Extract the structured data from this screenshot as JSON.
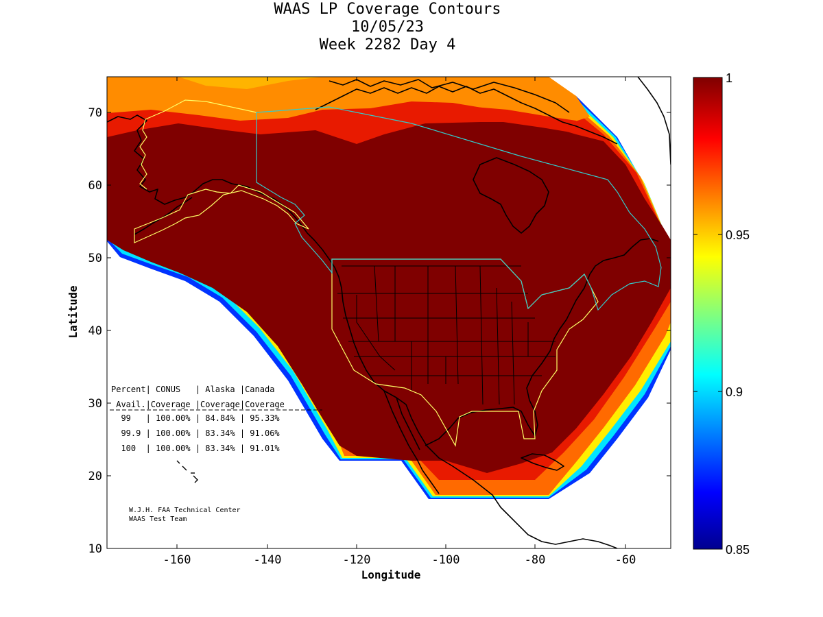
{
  "title": {
    "line1": "WAAS LP Coverage Contours",
    "line2": "10/05/23",
    "line3": "Week 2282 Day 4"
  },
  "map": {
    "xlabel": "Longitude",
    "ylabel": "Latitude",
    "xlim": [
      -175,
      -50
    ],
    "ylim": [
      10,
      75
    ],
    "x_ticks": [
      "-160",
      "-140",
      "-120",
      "-100",
      "-80",
      "-60"
    ],
    "y_ticks": [
      "10",
      "20",
      "30",
      "40",
      "50",
      "60",
      "70"
    ]
  },
  "colorbar": {
    "ticks": [
      "1",
      "0.95",
      "0.9",
      "0.85"
    ],
    "range": [
      0.85,
      1
    ],
    "colors": [
      "#7f0000",
      "#ff0000",
      "#ffff00",
      "#00ffff",
      "#0000ff",
      "#00008f"
    ]
  },
  "colors": {
    "full_coverage": "#7f0000",
    "coastline": "#000000",
    "service_volume_conus": "#ffff66",
    "service_volume_canada": "#33cccc"
  },
  "table": {
    "header1": "Percent| CONUS   | Alaska |Canada",
    "header2": " Avail.|Coverage |Coverage|Coverage",
    "rows": [
      "  99   | 100.00% | 84.84% | 95.33%",
      "  99.9 | 100.00% | 83.34% | 91.06%",
      "  100  | 100.00% | 83.34% | 91.01%"
    ]
  },
  "credit": {
    "line1": "W.J.H. FAA Technical Center",
    "line2": "WAAS Test Team"
  }
}
